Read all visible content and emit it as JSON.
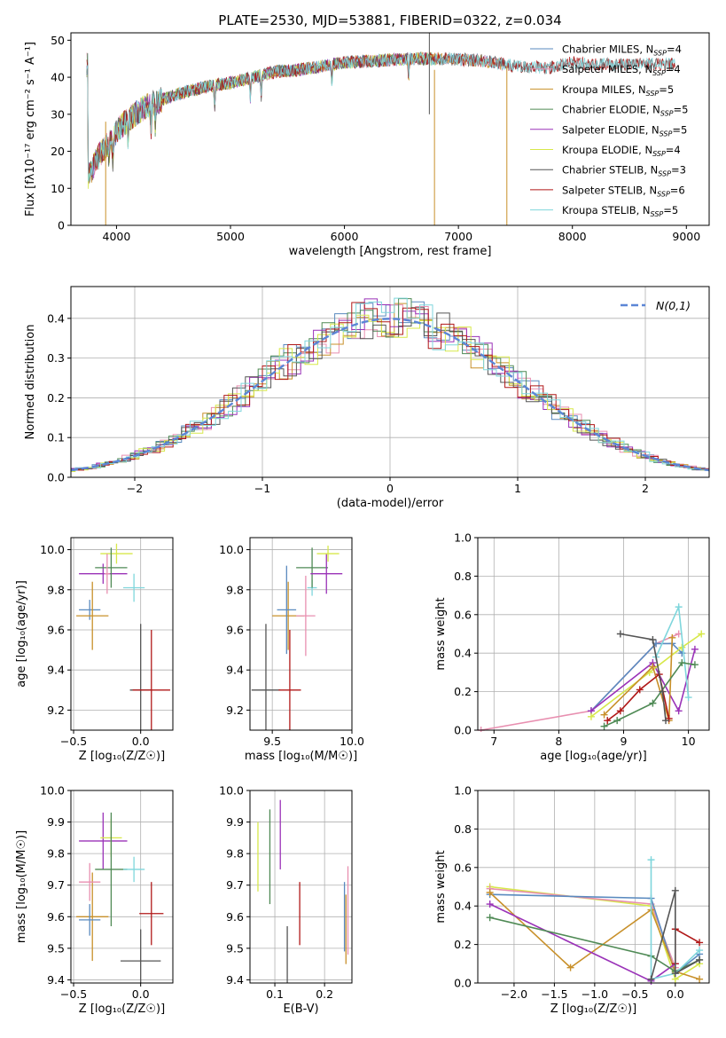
{
  "chart_data": [
    {
      "id": "spectrum",
      "type": "line",
      "title": "PLATE=2530, MJD=53881, FIBERID=0322, z=0.034",
      "xlabel": "wavelength [Angstrom, rest frame]",
      "ylabel": "Flux [fλ10⁻¹⁷ erg cm⁻² s⁻¹ A⁻¹]",
      "xlim": [
        3600,
        9200
      ],
      "ylim": [
        0,
        52
      ],
      "xticks": [
        4000,
        5000,
        6000,
        7000,
        8000,
        9000
      ],
      "yticks": [
        0,
        10,
        20,
        30,
        40,
        50
      ],
      "legend_position": "upper right",
      "continuum": {
        "x": [
          3750,
          3850,
          3950,
          4050,
          4200,
          4400,
          4600,
          4800,
          5000,
          5200,
          5400,
          5600,
          5800,
          6000,
          6300,
          6600,
          6900,
          7200,
          7500,
          7800,
          8000,
          8200
        ],
        "y": [
          13,
          19,
          23,
          27,
          31,
          34,
          36,
          37.5,
          38.5,
          40,
          41.5,
          42,
          43,
          44,
          44.5,
          45,
          45,
          44.5,
          43,
          42.5,
          44,
          43.5
        ]
      },
      "series": [
        {
          "name": "Chabrier MILES, N_SSP=4",
          "color": "#5a8abf",
          "x_end": 7400
        },
        {
          "name": "Salpeter MILES, N_SSP=4",
          "color": "#e88fb0",
          "x_end": 7400
        },
        {
          "name": "Kroupa MILES, N_SSP=5",
          "color": "#c8902a",
          "x_end": 7400
        },
        {
          "name": "Chabrier ELODIE, N_SSP=5",
          "color": "#4f8a55",
          "x_end": 6800
        },
        {
          "name": "Salpeter ELODIE, N_SSP=5",
          "color": "#9a32b8",
          "x_end": 6800
        },
        {
          "name": "Kroupa ELODIE, N_SSP=4",
          "color": "#d7e84a",
          "x_end": 6800
        },
        {
          "name": "Chabrier STELIB, N_SSP=3",
          "color": "#555555",
          "x_end": 8900
        },
        {
          "name": "Salpeter STELIB, N_SSP=6",
          "color": "#b01818",
          "x_end": 8900
        },
        {
          "name": "Kroupa STELIB, N_SSP=5",
          "color": "#7fd6dc",
          "x_end": 8900
        }
      ],
      "legend_labels": [
        {
          "base": "Chabrier MILES, N",
          "sub": "SSP",
          "tail": "=4"
        },
        {
          "base": "Salpeter MILES, N",
          "sub": "SSP",
          "tail": "=4"
        },
        {
          "base": "Kroupa MILES, N",
          "sub": "SSP",
          "tail": "=5"
        },
        {
          "base": "Chabrier ELODIE, N",
          "sub": "SSP",
          "tail": "=5"
        },
        {
          "base": "Salpeter ELODIE, N",
          "sub": "SSP",
          "tail": "=5"
        },
        {
          "base": "Kroupa ELODIE, N",
          "sub": "SSP",
          "tail": "=4"
        },
        {
          "base": "Chabrier STELIB, N",
          "sub": "SSP",
          "tail": "=3"
        },
        {
          "base": "Salpeter STELIB, N",
          "sub": "SSP",
          "tail": "=6"
        },
        {
          "base": "Kroupa STELIB, N",
          "sub": "SSP",
          "tail": "=5"
        }
      ]
    },
    {
      "id": "residuals",
      "type": "histogram",
      "xlabel": "(data-model)/error",
      "ylabel": "Normed distribution",
      "xlim": [
        -2.5,
        2.5
      ],
      "ylim": [
        0,
        0.48
      ],
      "xticks": [
        -2,
        -1,
        0,
        1,
        2
      ],
      "yticks": [
        0.0,
        0.1,
        0.2,
        0.3,
        0.4
      ],
      "grid": true,
      "reference_label": "N(0,1)",
      "reference_color": "#5b86d6",
      "bin_width": 0.1,
      "series_colors": [
        "#5a8abf",
        "#e88fb0",
        "#c8902a",
        "#4f8a55",
        "#9a32b8",
        "#d7e84a",
        "#555555",
        "#b01818",
        "#7fd6dc"
      ]
    },
    {
      "id": "age_vs_Z",
      "type": "errorbar",
      "xlabel": "Z [log₁₀(Z/Z☉)]",
      "ylabel": "age [log₁₀(age/yr)]",
      "xlim": [
        -0.52,
        0.24
      ],
      "ylim": [
        9.1,
        10.06
      ],
      "xticks": [
        -0.5,
        0.0
      ],
      "yticks": [
        9.2,
        9.4,
        9.6,
        9.8,
        10.0
      ],
      "points": [
        {
          "color": "#5a8abf",
          "x": -0.38,
          "y": 9.7,
          "xerr": 0.08,
          "yerr": 0.05
        },
        {
          "color": "#c8902a",
          "x": -0.36,
          "y": 9.67,
          "xerr": 0.12,
          "yerr": 0.17
        },
        {
          "color": "#9a32b8",
          "x": -0.28,
          "y": 9.88,
          "xerr": 0.18,
          "yerr": 0.05
        },
        {
          "color": "#d7e84a",
          "x": -0.18,
          "y": 9.98,
          "xerr": 0.12,
          "yerr": 0.05
        },
        {
          "color": "#4f8a55",
          "x": -0.22,
          "y": 9.91,
          "xerr": 0.12,
          "yerr": 0.1
        },
        {
          "color": "#e88fb0",
          "x": -0.25,
          "y": 9.88,
          "xerr": 0.02,
          "yerr": 0.1
        },
        {
          "color": "#7fd6dc",
          "x": -0.05,
          "y": 9.81,
          "xerr": 0.08,
          "yerr": 0.07
        },
        {
          "color": "#555555",
          "x": 0.0,
          "y": 9.3,
          "xerr": 0.08,
          "yerr": 0.33
        },
        {
          "color": "#b01818",
          "x": 0.08,
          "y": 9.3,
          "xerr": 0.14,
          "yerr": 0.3
        }
      ]
    },
    {
      "id": "age_vs_mass",
      "type": "errorbar",
      "xlabel": "mass [log₁₀(M/M☉)]",
      "xlim": [
        9.36,
        10.0
      ],
      "ylim": [
        9.1,
        10.06
      ],
      "xticks": [
        9.5,
        10.0
      ],
      "yticks": [
        9.2,
        9.4,
        9.6,
        9.8,
        10.0
      ],
      "points": [
        {
          "color": "#555555",
          "x": 9.46,
          "y": 9.3,
          "xerr": 0.09,
          "yerr": 0.33
        },
        {
          "color": "#b01818",
          "x": 9.61,
          "y": 9.3,
          "xerr": 0.07,
          "yerr": 0.3
        },
        {
          "color": "#c8902a",
          "x": 9.6,
          "y": 9.67,
          "xerr": 0.1,
          "yerr": 0.17
        },
        {
          "color": "#5a8abf",
          "x": 9.59,
          "y": 9.7,
          "xerr": 0.06,
          "yerr": 0.22
        },
        {
          "color": "#e88fb0",
          "x": 9.71,
          "y": 9.67,
          "xerr": 0.06,
          "yerr": 0.2
        },
        {
          "color": "#7fd6dc",
          "x": 9.75,
          "y": 9.81,
          "xerr": 0.03,
          "yerr": 0.04
        },
        {
          "color": "#4f8a55",
          "x": 9.75,
          "y": 9.91,
          "xerr": 0.1,
          "yerr": 0.1
        },
        {
          "color": "#9a32b8",
          "x": 9.84,
          "y": 9.88,
          "xerr": 0.1,
          "yerr": 0.1
        },
        {
          "color": "#d7e84a",
          "x": 9.85,
          "y": 9.98,
          "xerr": 0.07,
          "yerr": 0.04
        }
      ]
    },
    {
      "id": "massweight_vs_age",
      "type": "line",
      "xlabel": "age [log₁₀(age/yr)]",
      "ylabel": "mass weight",
      "xlim": [
        6.75,
        10.32
      ],
      "ylim": [
        0.0,
        1.0
      ],
      "xticks": [
        7,
        8,
        9,
        10
      ],
      "yticks": [
        0.0,
        0.2,
        0.4,
        0.6,
        0.8,
        1.0
      ],
      "series": [
        {
          "color": "#e88fb0",
          "x": [
            6.8,
            8.5,
            9.5,
            9.85
          ],
          "y": [
            0.0,
            0.1,
            0.45,
            0.5
          ]
        },
        {
          "color": "#5a8abf",
          "x": [
            8.5,
            9.5,
            9.75,
            9.9
          ],
          "y": [
            0.1,
            0.45,
            0.45,
            0.4
          ]
        },
        {
          "color": "#9a32b8",
          "x": [
            8.5,
            9.45,
            9.85,
            10.1
          ],
          "y": [
            0.1,
            0.35,
            0.1,
            0.42
          ]
        },
        {
          "color": "#d7e84a",
          "x": [
            8.5,
            9.4,
            9.9,
            10.2
          ],
          "y": [
            0.07,
            0.3,
            0.43,
            0.5
          ]
        },
        {
          "color": "#7fd6dc",
          "x": [
            9.5,
            9.85,
            10.0
          ],
          "y": [
            0.38,
            0.64,
            0.17
          ]
        },
        {
          "color": "#c8902a",
          "x": [
            8.7,
            9.45,
            9.7,
            9.75
          ],
          "y": [
            0.08,
            0.33,
            0.05,
            0.48
          ]
        },
        {
          "color": "#4f8a55",
          "x": [
            8.7,
            8.9,
            9.45,
            9.9,
            10.1
          ],
          "y": [
            0.02,
            0.05,
            0.14,
            0.35,
            0.34
          ]
        },
        {
          "color": "#b01818",
          "x": [
            8.75,
            8.95,
            9.25,
            9.55,
            9.7
          ],
          "y": [
            0.05,
            0.1,
            0.21,
            0.29,
            0.06
          ]
        },
        {
          "color": "#555555",
          "x": [
            8.95,
            9.45,
            9.6,
            9.65
          ],
          "y": [
            0.5,
            0.47,
            0.2,
            0.05
          ]
        }
      ]
    },
    {
      "id": "mass_vs_Z",
      "type": "errorbar",
      "xlabel": "Z [log₁₀(Z/Z☉)]",
      "ylabel": "mass [log₁₀(M/M☉)]",
      "xlim": [
        -0.52,
        0.24
      ],
      "ylim": [
        9.39,
        10.0
      ],
      "xticks": [
        -0.5,
        0.0
      ],
      "yticks": [
        9.4,
        9.5,
        9.6,
        9.7,
        9.8,
        9.9,
        10.0
      ],
      "points": [
        {
          "color": "#c8902a",
          "x": -0.36,
          "y": 9.6,
          "xerr": 0.12,
          "yerr": 0.14
        },
        {
          "color": "#5a8abf",
          "x": -0.38,
          "y": 9.59,
          "xerr": 0.08,
          "yerr": 0.05
        },
        {
          "color": "#e88fb0",
          "x": -0.38,
          "y": 9.71,
          "xerr": 0.08,
          "yerr": 0.06
        },
        {
          "color": "#9a32b8",
          "x": -0.28,
          "y": 9.84,
          "xerr": 0.18,
          "yerr": 0.09
        },
        {
          "color": "#d7e84a",
          "x": -0.22,
          "y": 9.85,
          "xerr": 0.08,
          "yerr": 0.06
        },
        {
          "color": "#4f8a55",
          "x": -0.22,
          "y": 9.75,
          "xerr": 0.12,
          "yerr": 0.18
        },
        {
          "color": "#7fd6dc",
          "x": -0.05,
          "y": 9.75,
          "xerr": 0.08,
          "yerr": 0.04
        },
        {
          "color": "#b01818",
          "x": 0.08,
          "y": 9.61,
          "xerr": 0.09,
          "yerr": 0.1
        },
        {
          "color": "#555555",
          "x": 0.0,
          "y": 9.46,
          "xerr": 0.15,
          "yerr": 0.1
        }
      ]
    },
    {
      "id": "mass_vs_ebv",
      "type": "errorbar",
      "xlabel": "E(B-V)",
      "xlim": [
        0.05,
        0.255
      ],
      "ylim": [
        9.39,
        10.0
      ],
      "xticks": [
        0.1,
        0.2
      ],
      "yticks": [
        9.4,
        9.5,
        9.6,
        9.7,
        9.8,
        9.9,
        10.0
      ],
      "points": [
        {
          "color": "#d7e84a",
          "x": 0.066,
          "y": 9.79,
          "xerr": 0.0,
          "yerr": 0.11
        },
        {
          "color": "#4f8a55",
          "x": 0.09,
          "y": 9.79,
          "xerr": 0.0,
          "yerr": 0.15
        },
        {
          "color": "#9a32b8",
          "x": 0.111,
          "y": 9.86,
          "xerr": 0.0,
          "yerr": 0.11
        },
        {
          "color": "#555555",
          "x": 0.125,
          "y": 9.46,
          "xerr": 0.0,
          "yerr": 0.11
        },
        {
          "color": "#b01818",
          "x": 0.15,
          "y": 9.61,
          "xerr": 0.0,
          "yerr": 0.1
        },
        {
          "color": "#5a8abf",
          "x": 0.24,
          "y": 9.6,
          "xerr": 0.0,
          "yerr": 0.11
        },
        {
          "color": "#c8902a",
          "x": 0.243,
          "y": 9.56,
          "xerr": 0.0,
          "yerr": 0.11
        },
        {
          "color": "#e88fb0",
          "x": 0.247,
          "y": 9.62,
          "xerr": 0.0,
          "yerr": 0.14
        }
      ]
    },
    {
      "id": "massweight_vs_Z",
      "type": "line",
      "xlabel": "Z [log₁₀(Z/Z☉)]",
      "ylabel": "mass weight",
      "xlim": [
        -2.45,
        0.42
      ],
      "ylim": [
        0.0,
        1.0
      ],
      "xticks": [
        -2.0,
        -1.5,
        -1.0,
        -0.5,
        0.0
      ],
      "yticks": [
        0.0,
        0.2,
        0.4,
        0.6,
        0.8,
        1.0
      ],
      "series": [
        {
          "color": "#d7e84a",
          "x": [
            -2.3,
            -0.3,
            0.0,
            0.3
          ],
          "y": [
            0.5,
            0.4,
            0.02,
            0.1
          ]
        },
        {
          "color": "#e88fb0",
          "x": [
            -2.3,
            -0.3,
            0.0
          ],
          "y": [
            0.49,
            0.41,
            0.08
          ]
        },
        {
          "color": "#5a8abf",
          "x": [
            -2.3,
            -0.3,
            0.0,
            0.3
          ],
          "y": [
            0.46,
            0.44,
            0.05,
            0.15
          ]
        },
        {
          "color": "#c8902a",
          "x": [
            -2.3,
            -1.3,
            -0.3,
            0.0,
            0.3
          ],
          "y": [
            0.47,
            0.08,
            0.38,
            0.06,
            0.02
          ]
        },
        {
          "color": "#9a32b8",
          "x": [
            -2.3,
            -0.3,
            0.0
          ],
          "y": [
            0.41,
            0.01,
            0.1
          ]
        },
        {
          "color": "#4f8a55",
          "x": [
            -2.3,
            -0.3,
            0.0,
            0.3
          ],
          "y": [
            0.34,
            0.14,
            0.06,
            0.12
          ]
        },
        {
          "color": "#7fd6dc",
          "x": [
            -0.3,
            -0.3,
            0.0,
            0.3
          ],
          "y": [
            0.64,
            0.02,
            0.05,
            0.17
          ]
        },
        {
          "color": "#b01818",
          "x": [
            0.0,
            0.0,
            0.3
          ],
          "y": [
            0.1,
            0.28,
            0.21
          ]
        },
        {
          "color": "#555555",
          "x": [
            -0.3,
            0.0,
            0.0,
            0.3
          ],
          "y": [
            0.02,
            0.48,
            0.05,
            0.12
          ]
        }
      ]
    }
  ]
}
